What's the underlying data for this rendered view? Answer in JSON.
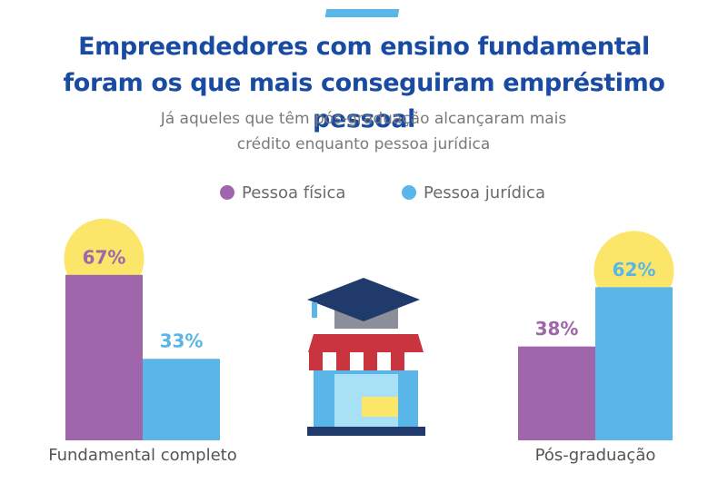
{
  "chart_data": {
    "type": "bar",
    "title": "Empreendedores com ensino fundamental foram os que mais conseguiram empréstimo pessoal",
    "subtitle": "Já aqueles que têm pós-graduação alcançaram mais crédito enquanto pessoa jurídica",
    "categories": [
      "Fundamental completo",
      "Pós-graduação"
    ],
    "series": [
      {
        "name": "Pessoa física",
        "color": "#a066ab",
        "values": [
          67,
          38
        ],
        "value_labels": [
          "67%",
          "38%"
        ]
      },
      {
        "name": "Pessoa jurídica",
        "color": "#5ab5e8",
        "values": [
          33,
          62
        ],
        "value_labels": [
          "33%",
          "62%"
        ]
      }
    ]
  }
}
